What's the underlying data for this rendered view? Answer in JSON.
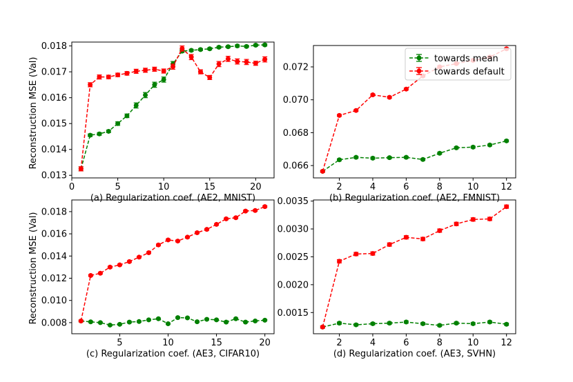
{
  "figure": {
    "ylabel": "Reconstruction MSE (Val)"
  },
  "legend": {
    "entries": [
      "towards mean",
      "towards default"
    ]
  },
  "colors": {
    "mean": "#008000",
    "default": "#ff0000",
    "axis": "#000000"
  },
  "chart_data": [
    {
      "type": "line",
      "title": "",
      "xlabel": "(a) Regularization coef. (AE2, MNIST)",
      "ylabel": "Reconstruction MSE (Val)",
      "xlim": [
        0,
        22
      ],
      "ylim": [
        0.0129,
        0.01815
      ],
      "xticks": [
        0,
        5,
        10,
        15,
        20
      ],
      "xtick_labels": [
        "0",
        "5",
        "10",
        "15",
        "20"
      ],
      "yticks": [
        0.013,
        0.014,
        0.015,
        0.016,
        0.017,
        0.018
      ],
      "ytick_labels": [
        "0.013",
        "0.014",
        "0.015",
        "0.016",
        "0.017",
        "0.018"
      ],
      "series": [
        {
          "name": "towards mean",
          "color": "#008000",
          "x": [
            1,
            2,
            3,
            4,
            5,
            6,
            7,
            8,
            9,
            10,
            11,
            12,
            13,
            14,
            15,
            16,
            17,
            18,
            19,
            20,
            21
          ],
          "values": [
            0.01325,
            0.01455,
            0.0146,
            0.0147,
            0.015,
            0.0153,
            0.0157,
            0.0161,
            0.0165,
            0.0167,
            0.0173,
            0.0178,
            0.01783,
            0.01786,
            0.01789,
            0.01795,
            0.01797,
            0.018,
            0.01798,
            0.01803,
            0.01804
          ],
          "err": [
            8e-05,
            5e-05,
            5e-05,
            5e-05,
            7e-05,
            7e-05,
            0.0001,
            0.0001,
            0.0001,
            0.0001,
            0.0001,
            5e-05,
            4e-05,
            4e-05,
            4e-05,
            4e-05,
            4e-05,
            4e-05,
            4e-05,
            4e-05,
            4e-05
          ]
        },
        {
          "name": "towards default",
          "color": "#ff0000",
          "x": [
            1,
            2,
            3,
            4,
            5,
            6,
            7,
            8,
            9,
            10,
            11,
            12,
            13,
            14,
            15,
            16,
            17,
            18,
            19,
            20,
            21
          ],
          "values": [
            0.01325,
            0.0165,
            0.0168,
            0.0168,
            0.01688,
            0.01694,
            0.01702,
            0.01706,
            0.0171,
            0.01703,
            0.0172,
            0.0179,
            0.01757,
            0.017,
            0.01678,
            0.0173,
            0.0175,
            0.0174,
            0.01738,
            0.01733,
            0.01748
          ],
          "err": [
            8e-05,
            8e-05,
            8e-05,
            7e-05,
            7e-05,
            7e-05,
            8e-05,
            8e-05,
            8e-05,
            8e-05,
            0.0001,
            0.0001,
            0.0001,
            8e-05,
            8e-05,
            0.0001,
            0.0001,
            0.0001,
            0.0001,
            8e-05,
            0.0001
          ]
        }
      ]
    },
    {
      "type": "line",
      "title": "",
      "xlabel": "(b) Regularization coef. (AE2, FMNIST)",
      "ylabel": "",
      "xlim": [
        0.45,
        12.55
      ],
      "ylim": [
        0.06525,
        0.0733
      ],
      "xticks": [
        2,
        4,
        6,
        8,
        10,
        12
      ],
      "xtick_labels": [
        "2",
        "4",
        "6",
        "8",
        "10",
        "12"
      ],
      "yticks": [
        0.066,
        0.068,
        0.07,
        0.072
      ],
      "ytick_labels": [
        "0.066",
        "0.068",
        "0.070",
        "0.072"
      ],
      "series": [
        {
          "name": "towards mean",
          "color": "#008000",
          "x": [
            1,
            2,
            3,
            4,
            5,
            6,
            7,
            8,
            9,
            10,
            11,
            12
          ],
          "values": [
            0.06565,
            0.06635,
            0.0665,
            0.06645,
            0.06648,
            0.0665,
            0.06637,
            0.06675,
            0.06708,
            0.06712,
            0.06725,
            0.0675
          ],
          "err": [
            6e-05,
            6e-05,
            6e-05,
            6e-05,
            6e-05,
            6e-05,
            6e-05,
            6e-05,
            6e-05,
            6e-05,
            6e-05,
            6e-05
          ]
        },
        {
          "name": "towards default",
          "color": "#ff0000",
          "x": [
            1,
            2,
            3,
            4,
            5,
            6,
            7,
            8,
            9,
            10,
            11,
            12
          ],
          "values": [
            0.06565,
            0.06905,
            0.06935,
            0.0703,
            0.07015,
            0.07065,
            0.07145,
            0.072,
            0.0722,
            0.0724,
            0.0726,
            0.0731
          ],
          "err": [
            6e-05,
            6e-05,
            6e-05,
            6e-05,
            6e-05,
            6e-05,
            6e-05,
            6e-05,
            6e-05,
            6e-05,
            6e-05,
            6e-05
          ]
        }
      ]
    },
    {
      "type": "line",
      "title": "",
      "xlabel": "(c) Regularization coef. (AE3, CIFAR10)",
      "ylabel": "Reconstruction MSE (Val)",
      "xlim": [
        0.05,
        20.95
      ],
      "ylim": [
        0.007,
        0.01905
      ],
      "xticks": [
        5,
        10,
        15,
        20
      ],
      "xtick_labels": [
        "5",
        "10",
        "15",
        "20"
      ],
      "yticks": [
        0.008,
        0.01,
        0.012,
        0.014,
        0.016,
        0.018
      ],
      "ytick_labels": [
        "0.008",
        "0.010",
        "0.012",
        "0.014",
        "0.016",
        "0.018"
      ],
      "series": [
        {
          "name": "towards mean",
          "color": "#008000",
          "x": [
            1,
            2,
            3,
            4,
            5,
            6,
            7,
            8,
            9,
            10,
            11,
            12,
            13,
            14,
            15,
            16,
            17,
            18,
            19,
            20
          ],
          "values": [
            0.00815,
            0.00807,
            0.008,
            0.00778,
            0.00785,
            0.00805,
            0.0081,
            0.00825,
            0.00835,
            0.0079,
            0.00845,
            0.00843,
            0.00808,
            0.0083,
            0.00825,
            0.00805,
            0.00835,
            0.00805,
            0.00815,
            0.00822
          ],
          "err": [
            8e-05,
            6e-05,
            6e-05,
            6e-05,
            6e-05,
            6e-05,
            6e-05,
            6e-05,
            6e-05,
            6e-05,
            6e-05,
            6e-05,
            6e-05,
            6e-05,
            6e-05,
            6e-05,
            6e-05,
            6e-05,
            6e-05,
            6e-05
          ]
        },
        {
          "name": "towards default",
          "color": "#ff0000",
          "x": [
            1,
            2,
            3,
            4,
            5,
            6,
            7,
            8,
            9,
            10,
            11,
            12,
            13,
            14,
            15,
            16,
            17,
            18,
            19,
            20
          ],
          "values": [
            0.00815,
            0.01225,
            0.01245,
            0.013,
            0.0132,
            0.0135,
            0.0139,
            0.0143,
            0.015,
            0.01545,
            0.01535,
            0.0157,
            0.0161,
            0.0164,
            0.01685,
            0.01735,
            0.01745,
            0.01805,
            0.0181,
            0.01845
          ],
          "err": [
            8e-05,
            8e-05,
            8e-05,
            8e-05,
            8e-05,
            8e-05,
            8e-05,
            8e-05,
            8e-05,
            8e-05,
            8e-05,
            8e-05,
            8e-05,
            8e-05,
            8e-05,
            8e-05,
            8e-05,
            8e-05,
            8e-05,
            8e-05
          ]
        }
      ]
    },
    {
      "type": "line",
      "title": "",
      "xlabel": "(d) Regularization coef. (AE3, SVHN)",
      "ylabel": "",
      "xlim": [
        0.45,
        12.55
      ],
      "ylim": [
        0.00112,
        0.00352
      ],
      "xticks": [
        2,
        4,
        6,
        8,
        10,
        12
      ],
      "xtick_labels": [
        "2",
        "4",
        "6",
        "8",
        "10",
        "12"
      ],
      "yticks": [
        0.0015,
        0.002,
        0.0025,
        0.003,
        0.0035
      ],
      "ytick_labels": [
        "0.0015",
        "0.0020",
        "0.0025",
        "0.0030",
        "0.0035"
      ],
      "series": [
        {
          "name": "towards mean",
          "color": "#008000",
          "x": [
            1,
            2,
            3,
            4,
            5,
            6,
            7,
            8,
            9,
            10,
            11,
            12
          ],
          "values": [
            0.00124,
            0.00131,
            0.00128,
            0.0013,
            0.00131,
            0.00133,
            0.0013,
            0.00127,
            0.00131,
            0.0013,
            0.00133,
            0.00129
          ],
          "err": [
            2e-05,
            2e-05,
            2e-05,
            2e-05,
            2e-05,
            2e-05,
            2e-05,
            2e-05,
            2e-05,
            2e-05,
            2e-05,
            2e-05
          ]
        },
        {
          "name": "towards default",
          "color": "#ff0000",
          "x": [
            1,
            2,
            3,
            4,
            5,
            6,
            7,
            8,
            9,
            10,
            11,
            12
          ],
          "values": [
            0.00124,
            0.00242,
            0.00255,
            0.00256,
            0.00272,
            0.00285,
            0.00282,
            0.00297,
            0.00309,
            0.00317,
            0.00318,
            0.0034
          ],
          "err": [
            2e-05,
            3e-05,
            3e-05,
            3e-05,
            3e-05,
            3e-05,
            3e-05,
            3e-05,
            3e-05,
            3e-05,
            3e-05,
            3e-05
          ]
        }
      ]
    }
  ]
}
